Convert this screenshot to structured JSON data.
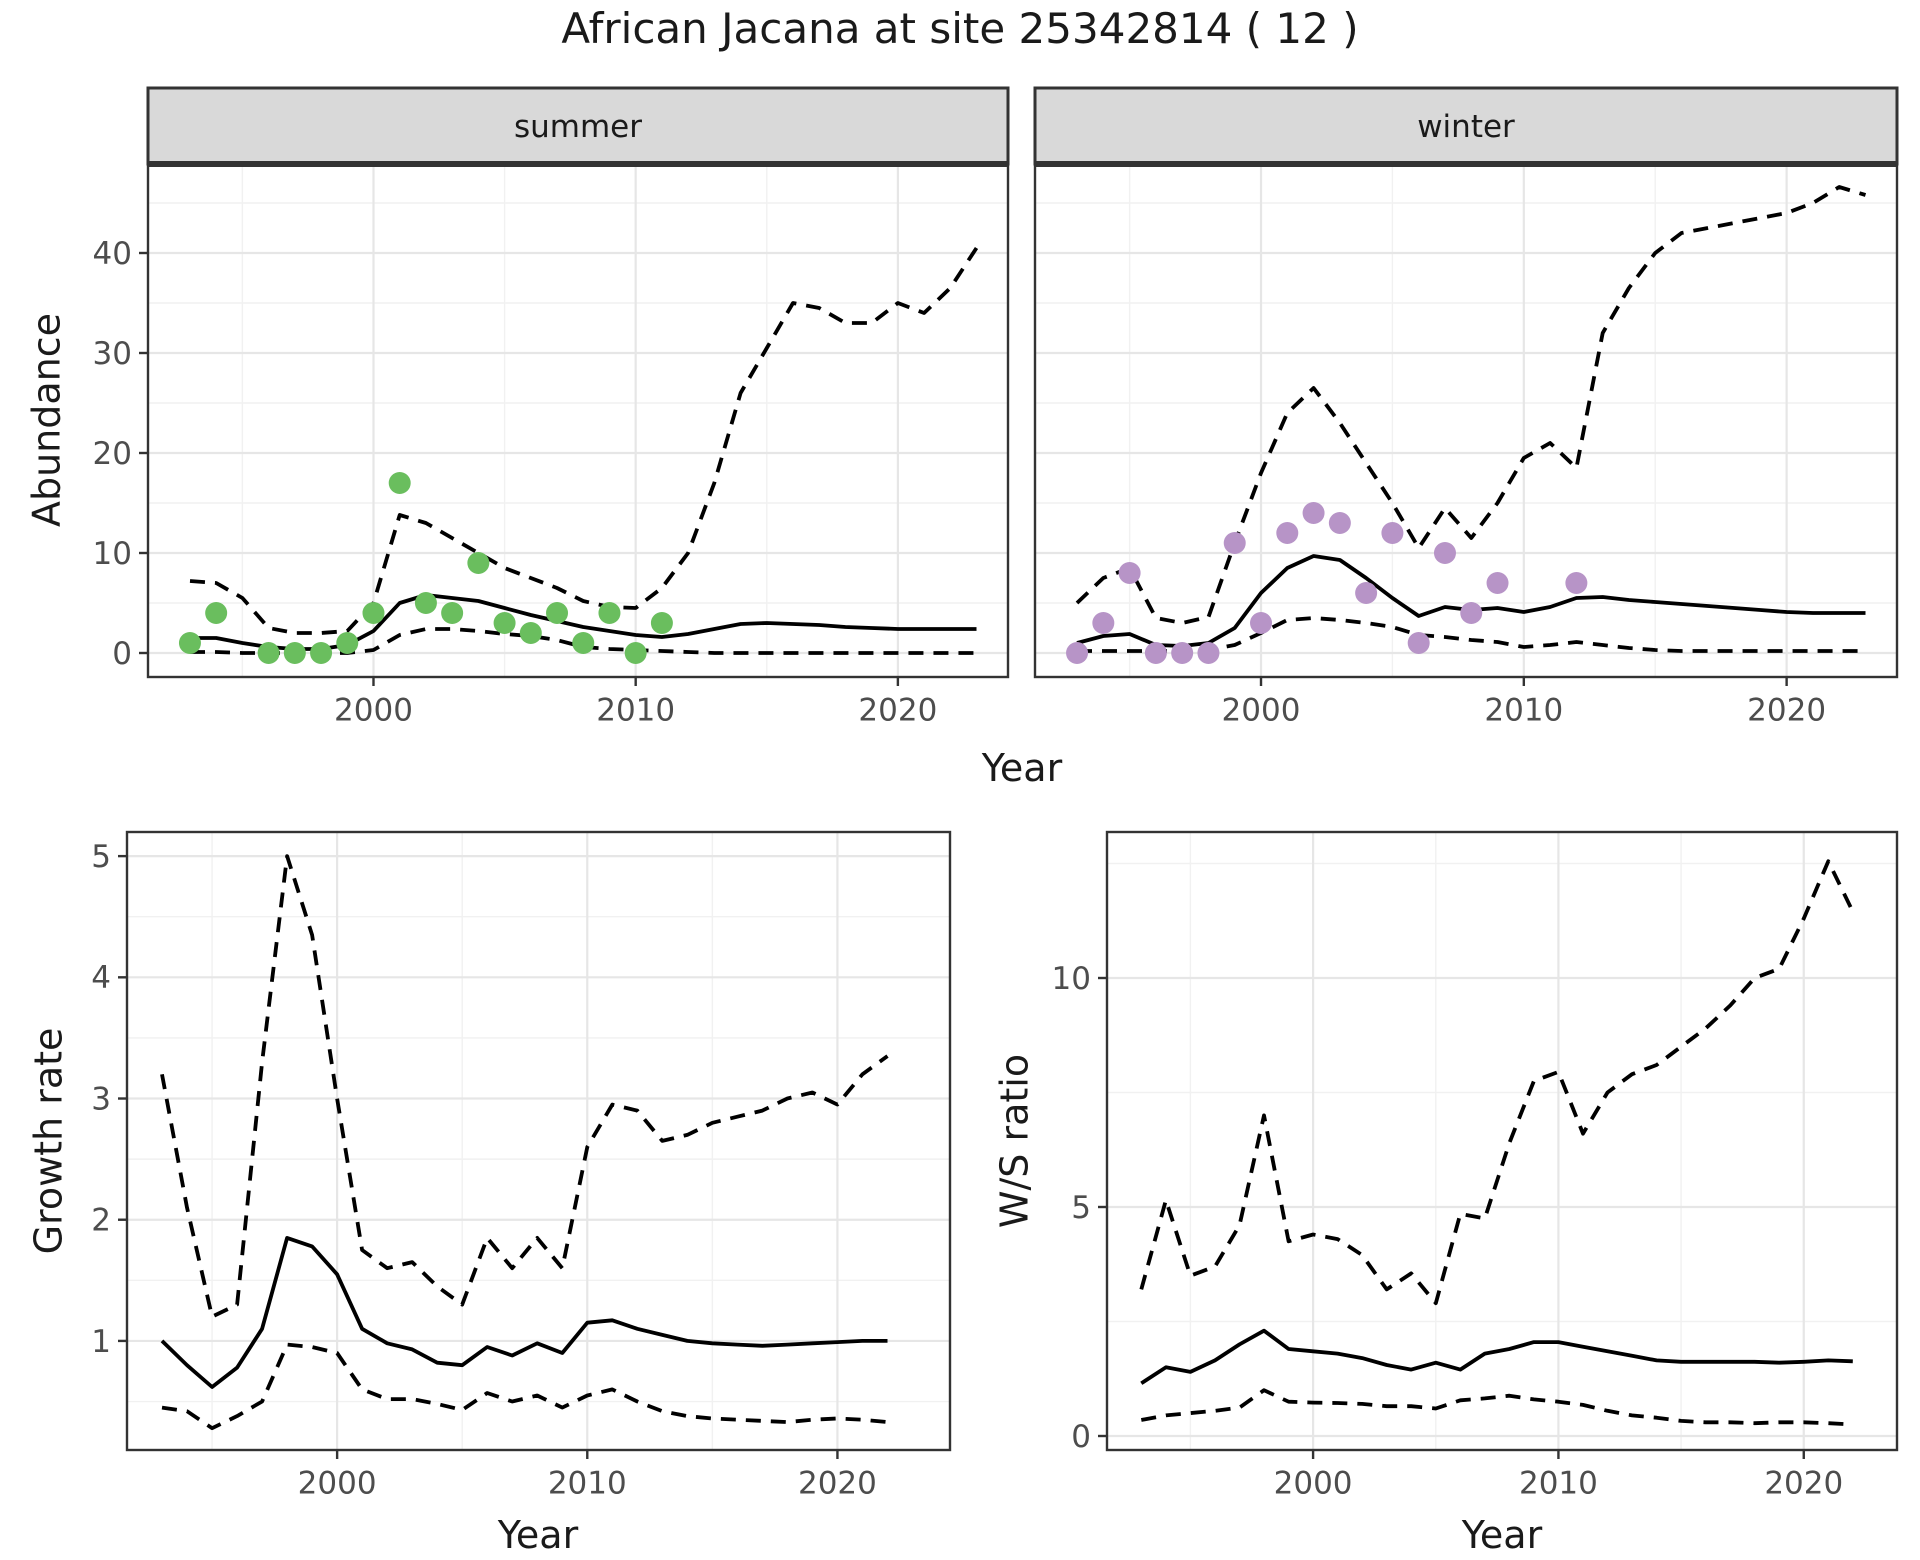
{
  "title": "African Jacana at site 25342814 ( 12 )",
  "colors": {
    "summer_obs": "#6abe5e",
    "winter_obs": "#b794c7",
    "line": "#000000",
    "axis_text": "#4d4d4d",
    "axis_title": "#1a1a1a",
    "strip_fill": "#d9d9d9",
    "strip_border": "#333333",
    "panel_border": "#333333",
    "grid_major": "#e6e6e6",
    "grid_minor": "#f1f1f1",
    "panel_bg": "#ffffff"
  },
  "chart_data": [
    {
      "id": "abundance_summer",
      "type": "line",
      "facet_label": "summer",
      "xlabel": "Year",
      "ylabel": "Abundance",
      "xlim": [
        1991.4,
        2024.2
      ],
      "ylim": [
        -2.4,
        48.9
      ],
      "x_ticks": [
        "2000",
        "2010",
        "2020"
      ],
      "x_tick_years": [
        2000,
        2010,
        2020
      ],
      "y_ticks": [
        "0",
        "10",
        "20",
        "30",
        "40"
      ],
      "y_tick_values": [
        0,
        10,
        20,
        30,
        40
      ],
      "years": [
        1993,
        1994,
        1995,
        1996,
        1997,
        1998,
        1999,
        2000,
        2001,
        2002,
        2003,
        2004,
        2005,
        2006,
        2007,
        2008,
        2009,
        2010,
        2011,
        2012,
        2013,
        2014,
        2015,
        2016,
        2017,
        2018,
        2019,
        2020,
        2021,
        2022,
        2023
      ],
      "series": [
        {
          "name": "median",
          "linetype": "solid",
          "values": [
            1.5,
            1.5,
            1.0,
            0.6,
            0.4,
            0.4,
            0.8,
            2.2,
            5.0,
            5.8,
            5.5,
            5.2,
            4.5,
            3.8,
            3.2,
            2.6,
            2.2,
            1.8,
            1.6,
            1.9,
            2.4,
            2.9,
            3.0,
            2.9,
            2.8,
            2.6,
            2.5,
            2.4,
            2.4,
            2.4,
            2.4
          ]
        },
        {
          "name": "lower_ci",
          "linetype": "dashed",
          "values": [
            0.1,
            0.1,
            0.0,
            0.0,
            0.0,
            0.0,
            0.0,
            0.3,
            1.8,
            2.4,
            2.4,
            2.2,
            1.9,
            1.7,
            1.3,
            0.6,
            0.4,
            0.3,
            0.2,
            0.1,
            0.0,
            0.0,
            0.0,
            0.0,
            0.0,
            0.0,
            0.0,
            0.0,
            0.0,
            0.0,
            0.0
          ]
        },
        {
          "name": "upper_ci",
          "linetype": "dashed",
          "values": [
            7.2,
            7.0,
            5.5,
            2.5,
            2.0,
            2.0,
            2.2,
            5.0,
            13.8,
            13.0,
            11.5,
            10.0,
            8.5,
            7.5,
            6.5,
            5.2,
            4.6,
            4.5,
            6.5,
            10.0,
            17.0,
            26.0,
            30.5,
            35.0,
            34.5,
            33.0,
            33.0,
            35.0,
            34.0,
            36.5,
            40.5
          ]
        }
      ],
      "observations": {
        "name": "summer_observed_counts",
        "color": "#6abe5e",
        "points": [
          [
            1993,
            1
          ],
          [
            1994,
            4
          ],
          [
            1996,
            0
          ],
          [
            1997,
            0
          ],
          [
            1998,
            0
          ],
          [
            1999,
            1
          ],
          [
            2000,
            4
          ],
          [
            2001,
            17
          ],
          [
            2002,
            5
          ],
          [
            2003,
            4
          ],
          [
            2004,
            9
          ],
          [
            2005,
            3
          ],
          [
            2006,
            2
          ],
          [
            2007,
            4
          ],
          [
            2008,
            1
          ],
          [
            2009,
            4
          ],
          [
            2010,
            0
          ],
          [
            2011,
            3
          ]
        ]
      }
    },
    {
      "id": "abundance_winter",
      "type": "line",
      "facet_label": "winter",
      "xlabel": "Year",
      "ylabel": "Abundance",
      "xlim": [
        1991.4,
        2024.2
      ],
      "ylim": [
        -2.4,
        48.9
      ],
      "x_ticks": [
        "2000",
        "2010",
        "2020"
      ],
      "x_tick_years": [
        2000,
        2010,
        2020
      ],
      "y_ticks": [
        "0",
        "10",
        "20",
        "30",
        "40"
      ],
      "y_tick_values": [
        0,
        10,
        20,
        30,
        40
      ],
      "years": [
        1993,
        1994,
        1995,
        1996,
        1997,
        1998,
        1999,
        2000,
        2001,
        2002,
        2003,
        2004,
        2005,
        2006,
        2007,
        2008,
        2009,
        2010,
        2011,
        2012,
        2013,
        2014,
        2015,
        2016,
        2017,
        2018,
        2019,
        2020,
        2021,
        2022,
        2023
      ],
      "series": [
        {
          "name": "median",
          "linetype": "solid",
          "values": [
            1.0,
            1.7,
            1.9,
            0.8,
            0.7,
            1.0,
            2.5,
            6.0,
            8.5,
            9.7,
            9.3,
            7.5,
            5.5,
            3.7,
            4.6,
            4.3,
            4.5,
            4.1,
            4.6,
            5.5,
            5.6,
            5.3,
            5.1,
            4.9,
            4.7,
            4.5,
            4.3,
            4.1,
            4.0,
            4.0,
            4.0
          ]
        },
        {
          "name": "lower_ci",
          "linetype": "dashed",
          "values": [
            0.2,
            0.2,
            0.2,
            0.2,
            0.2,
            0.3,
            0.8,
            2.0,
            3.3,
            3.5,
            3.3,
            3.0,
            2.6,
            1.8,
            1.6,
            1.3,
            1.1,
            0.6,
            0.8,
            1.1,
            0.8,
            0.5,
            0.3,
            0.2,
            0.2,
            0.2,
            0.2,
            0.2,
            0.2,
            0.2,
            0.2
          ]
        },
        {
          "name": "upper_ci",
          "linetype": "dashed",
          "values": [
            5.0,
            7.5,
            8.5,
            3.5,
            3.0,
            3.6,
            11.0,
            18.0,
            24.0,
            26.5,
            23.0,
            19.0,
            15.0,
            10.5,
            14.5,
            11.5,
            15.0,
            19.5,
            21.0,
            18.5,
            32.0,
            36.5,
            40.0,
            42.0,
            42.5,
            43.0,
            43.5,
            44.0,
            45.0,
            46.6,
            45.8
          ]
        }
      ],
      "observations": {
        "name": "winter_observed_counts",
        "color": "#b794c7",
        "points": [
          [
            1993,
            0
          ],
          [
            1994,
            3
          ],
          [
            1995,
            8
          ],
          [
            1996,
            0
          ],
          [
            1997,
            0
          ],
          [
            1998,
            0
          ],
          [
            1999,
            11
          ],
          [
            2000,
            3
          ],
          [
            2001,
            12
          ],
          [
            2002,
            14
          ],
          [
            2003,
            13
          ],
          [
            2004,
            6
          ],
          [
            2005,
            12
          ],
          [
            2006,
            1
          ],
          [
            2007,
            10
          ],
          [
            2008,
            4
          ],
          [
            2009,
            7
          ],
          [
            2012,
            7
          ]
        ]
      }
    },
    {
      "id": "growth_rate",
      "type": "line",
      "facet_label": "",
      "xlabel": "Year",
      "ylabel": "Growth rate",
      "xlim": [
        1991.6,
        2024.5
      ],
      "ylim": [
        0.1,
        5.2
      ],
      "x_ticks": [
        "2000",
        "2010",
        "2020"
      ],
      "x_tick_years": [
        2000,
        2010,
        2020
      ],
      "y_ticks": [
        "1",
        "2",
        "3",
        "4",
        "5"
      ],
      "y_tick_values": [
        1,
        2,
        3,
        4,
        5
      ],
      "years": [
        1993,
        1994,
        1995,
        1996,
        1997,
        1998,
        1999,
        2000,
        2001,
        2002,
        2003,
        2004,
        2005,
        2006,
        2007,
        2008,
        2009,
        2010,
        2011,
        2012,
        2013,
        2014,
        2015,
        2016,
        2017,
        2018,
        2019,
        2020,
        2021,
        2022
      ],
      "series": [
        {
          "name": "median",
          "linetype": "solid",
          "values": [
            1.0,
            0.8,
            0.62,
            0.78,
            1.1,
            1.85,
            1.78,
            1.55,
            1.1,
            0.98,
            0.93,
            0.82,
            0.8,
            0.95,
            0.88,
            0.98,
            0.9,
            1.15,
            1.17,
            1.1,
            1.05,
            1.0,
            0.98,
            0.97,
            0.96,
            0.97,
            0.98,
            0.99,
            1.0,
            1.0
          ]
        },
        {
          "name": "lower_ci",
          "linetype": "dashed",
          "values": [
            0.45,
            0.42,
            0.28,
            0.38,
            0.5,
            0.97,
            0.95,
            0.9,
            0.6,
            0.52,
            0.52,
            0.48,
            0.43,
            0.57,
            0.5,
            0.55,
            0.45,
            0.55,
            0.6,
            0.5,
            0.42,
            0.38,
            0.36,
            0.35,
            0.34,
            0.33,
            0.35,
            0.36,
            0.35,
            0.33
          ]
        },
        {
          "name": "upper_ci",
          "linetype": "dashed",
          "values": [
            3.2,
            2.1,
            1.2,
            1.3,
            3.3,
            5.0,
            4.35,
            3.0,
            1.75,
            1.6,
            1.65,
            1.45,
            1.3,
            1.85,
            1.6,
            1.85,
            1.6,
            2.6,
            2.95,
            2.9,
            2.65,
            2.7,
            2.8,
            2.85,
            2.9,
            3.0,
            3.05,
            2.95,
            3.2,
            3.35
          ]
        }
      ],
      "observations": {
        "name": "none",
        "color": "",
        "points": []
      }
    },
    {
      "id": "ws_ratio",
      "type": "line",
      "facet_label": "",
      "xlabel": "Year",
      "ylabel": "W/S ratio",
      "xlim": [
        1991.6,
        2023.8
      ],
      "ylim": [
        -0.3,
        13.2
      ],
      "x_ticks": [
        "2000",
        "2010",
        "2020"
      ],
      "x_tick_years": [
        2000,
        2010,
        2020
      ],
      "y_ticks": [
        "0",
        "5",
        "10"
      ],
      "y_tick_values": [
        0,
        5,
        10
      ],
      "years": [
        1993,
        1994,
        1995,
        1996,
        1997,
        1998,
        1999,
        2000,
        2001,
        2002,
        2003,
        2004,
        2005,
        2006,
        2007,
        2008,
        2009,
        2010,
        2011,
        2012,
        2013,
        2014,
        2015,
        2016,
        2017,
        2018,
        2019,
        2020,
        2021,
        2022
      ],
      "series": [
        {
          "name": "median",
          "linetype": "solid",
          "values": [
            1.15,
            1.5,
            1.4,
            1.65,
            2.0,
            2.3,
            1.9,
            1.85,
            1.8,
            1.7,
            1.55,
            1.45,
            1.6,
            1.45,
            1.8,
            1.9,
            2.05,
            2.05,
            1.95,
            1.85,
            1.75,
            1.65,
            1.62,
            1.62,
            1.62,
            1.62,
            1.6,
            1.62,
            1.65,
            1.63
          ]
        },
        {
          "name": "lower_ci",
          "linetype": "dashed",
          "values": [
            0.35,
            0.45,
            0.5,
            0.55,
            0.62,
            1.0,
            0.75,
            0.73,
            0.72,
            0.7,
            0.65,
            0.65,
            0.6,
            0.78,
            0.82,
            0.88,
            0.8,
            0.75,
            0.68,
            0.55,
            0.45,
            0.4,
            0.33,
            0.3,
            0.3,
            0.28,
            0.3,
            0.3,
            0.28,
            0.25
          ]
        },
        {
          "name": "upper_ci",
          "linetype": "dashed",
          "values": [
            3.2,
            5.15,
            3.5,
            3.7,
            4.6,
            7.0,
            4.25,
            4.4,
            4.3,
            3.95,
            3.2,
            3.55,
            2.9,
            4.85,
            4.75,
            6.4,
            7.75,
            7.95,
            6.6,
            7.5,
            7.9,
            8.1,
            8.5,
            8.9,
            9.4,
            10.0,
            10.2,
            11.3,
            12.55,
            11.45
          ]
        }
      ],
      "observations": {
        "name": "none",
        "color": "",
        "points": []
      }
    }
  ]
}
